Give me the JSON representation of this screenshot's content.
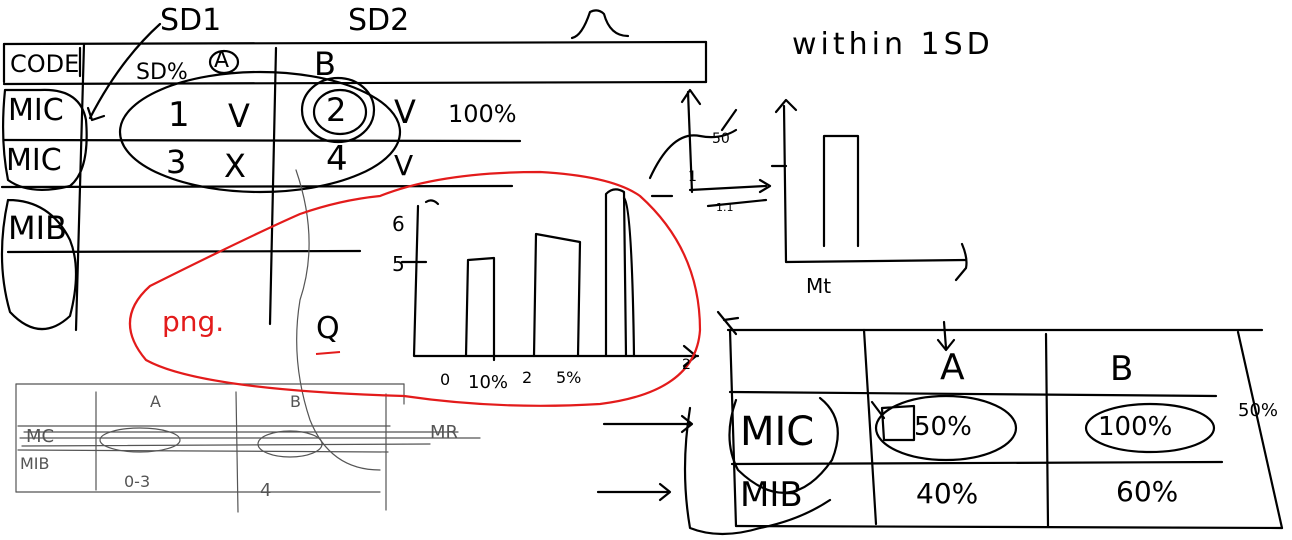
{
  "sketch": {
    "headers": {
      "sd1": "SD1",
      "sd2": "SD2",
      "bell_symbol": "Λ",
      "within": "within 1SD"
    },
    "top_table": {
      "code_label": "CODE",
      "sd_percent": "SD%",
      "col_a": "A",
      "col_b": "B",
      "rows": [
        {
          "label": "MIC",
          "a_value": "1",
          "a_mark": "V",
          "b_value": "2",
          "b_mark": "V",
          "note": "100%"
        },
        {
          "label": "MIC",
          "a_value": "3",
          "a_mark": "X",
          "b_value": "4",
          "b_mark": "V"
        },
        {
          "label": "MIB"
        }
      ]
    },
    "annotations": {
      "png": "png.",
      "q": "Q"
    },
    "bar_chart": {
      "y_ticks": [
        "6",
        "5"
      ],
      "x_ticks": [
        "0",
        "10%",
        "2",
        "5%",
        "2"
      ]
    },
    "small_chart": {
      "labels": [
        "50",
        "1",
        "1.1"
      ]
    },
    "right_chart": {
      "x_label": "Mt"
    },
    "mini_table": {
      "col_a": "A",
      "col_b": "B",
      "rows": [
        {
          "label": "MC",
          "tail": "MR"
        },
        {
          "label": "MIB",
          "a_value": "0-3",
          "b_value": "4"
        }
      ]
    },
    "bottom_table": {
      "col_a": "A",
      "col_b": "B",
      "side_note": "50%",
      "rows": [
        {
          "label": "MIC",
          "a_value": "50%",
          "b_value": "100%"
        },
        {
          "label": "MIB",
          "a_value": "40%",
          "b_value": "60%"
        }
      ]
    },
    "colors": {
      "ink": "#000000",
      "red_ink": "#e31b1b",
      "pencil": "#555555",
      "background": "#ffffff"
    }
  }
}
